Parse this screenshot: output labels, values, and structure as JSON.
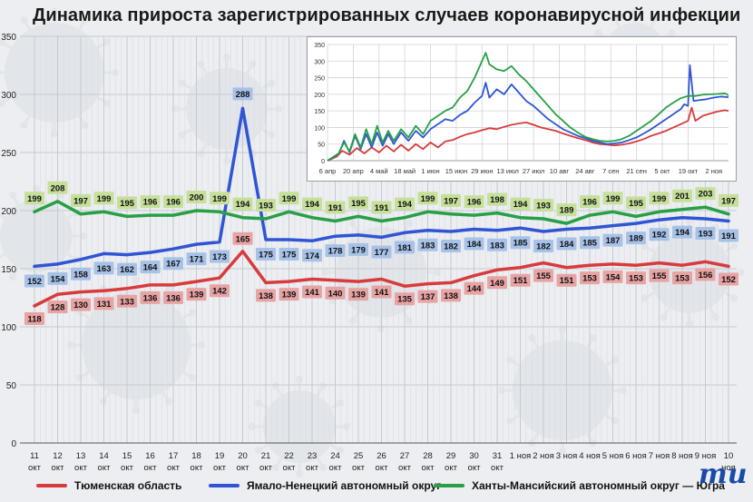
{
  "title": "Динамика прироста зарегистрированных случаев коронавирусной инфекции",
  "logo": {
    "mark": "mu"
  },
  "colors": {
    "tyumen": "#d83b3b",
    "yanao": "#2f55d4",
    "khmao": "#27a045",
    "label_red": "#e8a3a3",
    "label_blue": "#a7c2e8",
    "label_green": "#c6e09a",
    "grid": "#c5cad1"
  },
  "chart_data": [
    {
      "type": "line",
      "title": "Динамика прироста зарегистрированных случаев коронавирусной инфекции",
      "ylim": [
        0,
        350
      ],
      "yticks": [
        0,
        50,
        100,
        150,
        200,
        250,
        300,
        350
      ],
      "grid": true,
      "legend_position": "bottom",
      "categories": [
        [
          "11",
          "окт"
        ],
        [
          "12",
          "окт"
        ],
        [
          "13",
          "окт"
        ],
        [
          "14",
          "окт"
        ],
        [
          "15",
          "окт"
        ],
        [
          "16",
          "окт"
        ],
        [
          "17",
          "окт"
        ],
        [
          "18",
          "окт"
        ],
        [
          "19",
          "окт"
        ],
        [
          "20",
          "окт"
        ],
        [
          "21",
          "окт"
        ],
        [
          "22",
          "окт"
        ],
        [
          "23",
          "окт"
        ],
        [
          "24",
          "окт"
        ],
        [
          "25",
          "окт"
        ],
        [
          "26",
          "окт"
        ],
        [
          "27",
          "окт"
        ],
        [
          "28",
          "окт"
        ],
        [
          "29",
          "окт"
        ],
        [
          "30",
          "окт"
        ],
        [
          "31",
          "окт"
        ],
        [
          "1 ноя"
        ],
        [
          "2 ноя"
        ],
        [
          "3 ноя"
        ],
        [
          "4 ноя"
        ],
        [
          "5 ноя"
        ],
        [
          "6 ноя"
        ],
        [
          "7 ноя"
        ],
        [
          "8 ноя"
        ],
        [
          "9 ноя"
        ],
        [
          "10",
          "ноя"
        ]
      ],
      "series": [
        {
          "name": "Тюменская область",
          "color_key": "tyumen",
          "label_color_key": "label_red",
          "values": [
            118,
            128,
            130,
            131,
            133,
            136,
            136,
            139,
            142,
            165,
            138,
            139,
            141,
            140,
            139,
            141,
            135,
            137,
            138,
            144,
            149,
            151,
            155,
            151,
            153,
            154,
            153,
            155,
            153,
            156,
            152
          ]
        },
        {
          "name": "Ямало-Ненецкий автономный округ",
          "color_key": "yanao",
          "label_color_key": "label_blue",
          "values": [
            152,
            154,
            158,
            163,
            162,
            164,
            167,
            171,
            173,
            288,
            175,
            175,
            174,
            178,
            179,
            177,
            181,
            183,
            182,
            184,
            183,
            185,
            182,
            184,
            185,
            187,
            189,
            192,
            194,
            193,
            191
          ]
        },
        {
          "name": "Ханты-Мансийский автономный округ — Югра",
          "color_key": "khmao",
          "label_color_key": "label_green",
          "values": [
            199,
            208,
            197,
            199,
            195,
            196,
            196,
            200,
            199,
            194,
            193,
            199,
            194,
            191,
            195,
            191,
            194,
            199,
            197,
            196,
            198,
            194,
            193,
            189,
            196,
            199,
            195,
            199,
            201,
            203,
            197
          ]
        }
      ]
    },
    {
      "type": "line",
      "ylim": [
        0,
        350
      ],
      "yticks": [
        0,
        50,
        100,
        150,
        200,
        250,
        300,
        350
      ],
      "grid": true,
      "x_tick_labels": [
        "6 апр",
        "20 апр",
        "4 май",
        "18 май",
        "1 июн",
        "15 июн",
        "29 июн",
        "13 июл",
        "27 июл",
        "10 авг",
        "24 авг",
        "7 сен",
        "21 сен",
        "5 окт",
        "19 окт",
        "2 ноя"
      ],
      "x_tick_days": [
        0,
        14,
        28,
        42,
        56,
        70,
        84,
        98,
        112,
        126,
        140,
        154,
        168,
        182,
        196,
        210
      ],
      "x_range_days": [
        0,
        218
      ],
      "series": [
        {
          "color_key": "tyumen",
          "points": [
            [
              0,
              0
            ],
            [
              5,
              12
            ],
            [
              8,
              30
            ],
            [
              12,
              18
            ],
            [
              16,
              38
            ],
            [
              20,
              22
            ],
            [
              24,
              40
            ],
            [
              28,
              25
            ],
            [
              32,
              45
            ],
            [
              36,
              28
            ],
            [
              40,
              48
            ],
            [
              44,
              30
            ],
            [
              48,
              50
            ],
            [
              52,
              35
            ],
            [
              56,
              55
            ],
            [
              60,
              40
            ],
            [
              64,
              58
            ],
            [
              68,
              62
            ],
            [
              72,
              72
            ],
            [
              76,
              80
            ],
            [
              80,
              85
            ],
            [
              84,
              92
            ],
            [
              88,
              98
            ],
            [
              92,
              95
            ],
            [
              96,
              102
            ],
            [
              100,
              108
            ],
            [
              104,
              112
            ],
            [
              108,
              115
            ],
            [
              112,
              108
            ],
            [
              116,
              100
            ],
            [
              120,
              95
            ],
            [
              124,
              90
            ],
            [
              128,
              82
            ],
            [
              132,
              75
            ],
            [
              136,
              68
            ],
            [
              140,
              62
            ],
            [
              144,
              55
            ],
            [
              148,
              50
            ],
            [
              152,
              48
            ],
            [
              156,
              46
            ],
            [
              160,
              48
            ],
            [
              164,
              52
            ],
            [
              168,
              58
            ],
            [
              172,
              65
            ],
            [
              176,
              75
            ],
            [
              180,
              82
            ],
            [
              184,
              90
            ],
            [
              188,
              100
            ],
            [
              192,
              110
            ],
            [
              196,
              120
            ],
            [
              198,
              160
            ],
            [
              200,
              120
            ],
            [
              204,
              135
            ],
            [
              208,
              142
            ],
            [
              212,
              148
            ],
            [
              216,
              152
            ],
            [
              218,
              150
            ]
          ]
        },
        {
          "color_key": "yanao",
          "points": [
            [
              0,
              0
            ],
            [
              6,
              20
            ],
            [
              9,
              60
            ],
            [
              12,
              25
            ],
            [
              15,
              75
            ],
            [
              18,
              35
            ],
            [
              21,
              80
            ],
            [
              24,
              40
            ],
            [
              27,
              85
            ],
            [
              30,
              45
            ],
            [
              33,
              80
            ],
            [
              36,
              50
            ],
            [
              40,
              85
            ],
            [
              44,
              60
            ],
            [
              48,
              90
            ],
            [
              52,
              70
            ],
            [
              56,
              95
            ],
            [
              60,
              110
            ],
            [
              64,
              125
            ],
            [
              68,
              120
            ],
            [
              72,
              138
            ],
            [
              76,
              150
            ],
            [
              80,
              175
            ],
            [
              84,
              195
            ],
            [
              86,
              235
            ],
            [
              88,
              190
            ],
            [
              92,
              215
            ],
            [
              96,
              200
            ],
            [
              100,
              230
            ],
            [
              104,
              205
            ],
            [
              108,
              180
            ],
            [
              112,
              165
            ],
            [
              116,
              145
            ],
            [
              120,
              125
            ],
            [
              124,
              110
            ],
            [
              128,
              95
            ],
            [
              132,
              85
            ],
            [
              136,
              75
            ],
            [
              140,
              68
            ],
            [
              144,
              60
            ],
            [
              148,
              55
            ],
            [
              152,
              50
            ],
            [
              156,
              52
            ],
            [
              160,
              55
            ],
            [
              164,
              62
            ],
            [
              168,
              70
            ],
            [
              172,
              82
            ],
            [
              176,
              95
            ],
            [
              180,
              110
            ],
            [
              184,
              125
            ],
            [
              188,
              140
            ],
            [
              192,
              155
            ],
            [
              194,
              170
            ],
            [
              196,
              165
            ],
            [
              197,
              288
            ],
            [
              199,
              180
            ],
            [
              202,
              182
            ],
            [
              206,
              185
            ],
            [
              210,
              190
            ],
            [
              214,
              193
            ],
            [
              218,
              191
            ]
          ]
        },
        {
          "color_key": "khmao",
          "points": [
            [
              0,
              0
            ],
            [
              6,
              22
            ],
            [
              9,
              55
            ],
            [
              12,
              28
            ],
            [
              15,
              80
            ],
            [
              18,
              40
            ],
            [
              21,
              95
            ],
            [
              24,
              50
            ],
            [
              27,
              105
            ],
            [
              30,
              55
            ],
            [
              33,
              90
            ],
            [
              36,
              60
            ],
            [
              40,
              95
            ],
            [
              44,
              70
            ],
            [
              48,
              105
            ],
            [
              52,
              80
            ],
            [
              56,
              120
            ],
            [
              60,
              135
            ],
            [
              64,
              150
            ],
            [
              68,
              160
            ],
            [
              72,
              190
            ],
            [
              76,
              210
            ],
            [
              80,
              250
            ],
            [
              84,
              300
            ],
            [
              86,
              325
            ],
            [
              88,
              290
            ],
            [
              92,
              275
            ],
            [
              96,
              270
            ],
            [
              100,
              285
            ],
            [
              104,
              260
            ],
            [
              108,
              240
            ],
            [
              112,
              215
            ],
            [
              116,
              190
            ],
            [
              120,
              165
            ],
            [
              124,
              140
            ],
            [
              128,
              120
            ],
            [
              132,
              100
            ],
            [
              136,
              85
            ],
            [
              140,
              72
            ],
            [
              144,
              65
            ],
            [
              148,
              60
            ],
            [
              152,
              58
            ],
            [
              156,
              60
            ],
            [
              160,
              65
            ],
            [
              164,
              75
            ],
            [
              168,
              90
            ],
            [
              172,
              105
            ],
            [
              176,
              120
            ],
            [
              180,
              140
            ],
            [
              184,
              160
            ],
            [
              188,
              175
            ],
            [
              192,
              188
            ],
            [
              196,
              195
            ],
            [
              200,
              195
            ],
            [
              204,
              199
            ],
            [
              208,
              200
            ],
            [
              212,
              201
            ],
            [
              216,
              203
            ],
            [
              218,
              197
            ]
          ]
        }
      ]
    }
  ]
}
